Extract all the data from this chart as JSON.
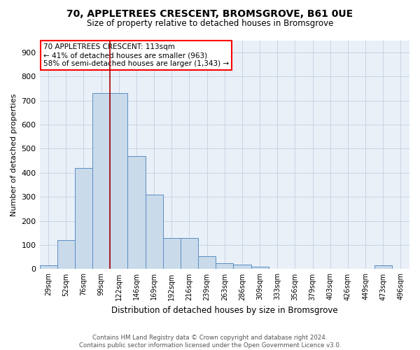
{
  "title": "70, APPLETREES CRESCENT, BROMSGROVE, B61 0UE",
  "subtitle": "Size of property relative to detached houses in Bromsgrove",
  "xlabel": "Distribution of detached houses by size in Bromsgrove",
  "ylabel": "Number of detached properties",
  "bar_color": "#c9daea",
  "bar_edge_color": "#5b8ec4",
  "annotation_line_color": "#aa0000",
  "annotation_property": "70 APPLETREES CRESCENT: 113sqm",
  "annotation_line1": "← 41% of detached houses are smaller (963)",
  "annotation_line2": "58% of semi-detached houses are larger (1,343) →",
  "property_sqm": 113,
  "categories": [
    "29sqm",
    "52sqm",
    "76sqm",
    "99sqm",
    "122sqm",
    "146sqm",
    "169sqm",
    "192sqm",
    "216sqm",
    "239sqm",
    "263sqm",
    "286sqm",
    "309sqm",
    "333sqm",
    "356sqm",
    "379sqm",
    "403sqm",
    "426sqm",
    "449sqm",
    "473sqm",
    "496sqm"
  ],
  "values": [
    15,
    120,
    420,
    730,
    730,
    470,
    310,
    130,
    130,
    55,
    25,
    20,
    10,
    2,
    2,
    0,
    0,
    0,
    0,
    15,
    2
  ],
  "ylim": [
    0,
    950
  ],
  "yticks": [
    0,
    100,
    200,
    300,
    400,
    500,
    600,
    700,
    800,
    900
  ],
  "grid_color": "#c8d4e4",
  "background_color": "#eaf0f8",
  "footer_line1": "Contains HM Land Registry data © Crown copyright and database right 2024.",
  "footer_line2": "Contains public sector information licensed under the Open Government Licence v3.0."
}
